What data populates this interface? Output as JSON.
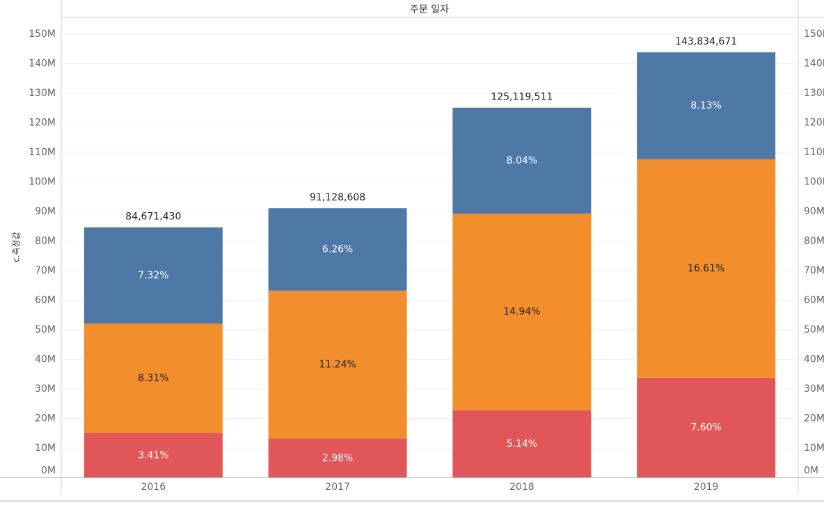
{
  "chart_data": {
    "type": "stacked-bar",
    "header": "주문 일자",
    "y_label": "c.측정값",
    "categories": [
      "2016",
      "2017",
      "2018",
      "2019"
    ],
    "series": [
      {
        "color": "#e15759",
        "values": [
          15170000,
          13250000,
          22860000,
          33800000
        ],
        "value_labels": [
          "3.41%",
          "2.98%",
          "5.14%",
          "7.60%"
        ],
        "label_color": "#ffffff"
      },
      {
        "color": "#f28e2b",
        "values": [
          36960000,
          49990000,
          66450000,
          73870000
        ],
        "value_labels": [
          "8.31%",
          "11.24%",
          "14.94%",
          "16.61%"
        ],
        "label_color": "#222222"
      },
      {
        "color": "#4e79a7",
        "values": [
          32540000,
          27890000,
          35810000,
          36160000
        ],
        "value_labels": [
          "7.32%",
          "6.26%",
          "8.04%",
          "8.13%"
        ],
        "label_color": "#ffffff"
      }
    ],
    "totals": [
      84671430,
      91128608,
      125119511,
      143834671
    ],
    "total_labels": [
      "84,671,430",
      "91,128,608",
      "125,119,511",
      "143,834,671"
    ],
    "ylim": [
      0,
      150000000
    ],
    "yticks": [
      {
        "value": 0,
        "label": "0M"
      },
      {
        "value": 10000000,
        "label": "10M"
      },
      {
        "value": 20000000,
        "label": "20M"
      },
      {
        "value": 30000000,
        "label": "30M"
      },
      {
        "value": 40000000,
        "label": "40M"
      },
      {
        "value": 50000000,
        "label": "50M"
      },
      {
        "value": 60000000,
        "label": "60M"
      },
      {
        "value": 70000000,
        "label": "70M"
      },
      {
        "value": 80000000,
        "label": "80M"
      },
      {
        "value": 90000000,
        "label": "90M"
      },
      {
        "value": 100000000,
        "label": "100M"
      },
      {
        "value": 110000000,
        "label": "110M"
      },
      {
        "value": 120000000,
        "label": "120M"
      },
      {
        "value": 130000000,
        "label": "130M"
      },
      {
        "value": 140000000,
        "label": "140M"
      },
      {
        "value": 150000000,
        "label": "150M"
      }
    ],
    "right_axis": true,
    "grid": true
  }
}
